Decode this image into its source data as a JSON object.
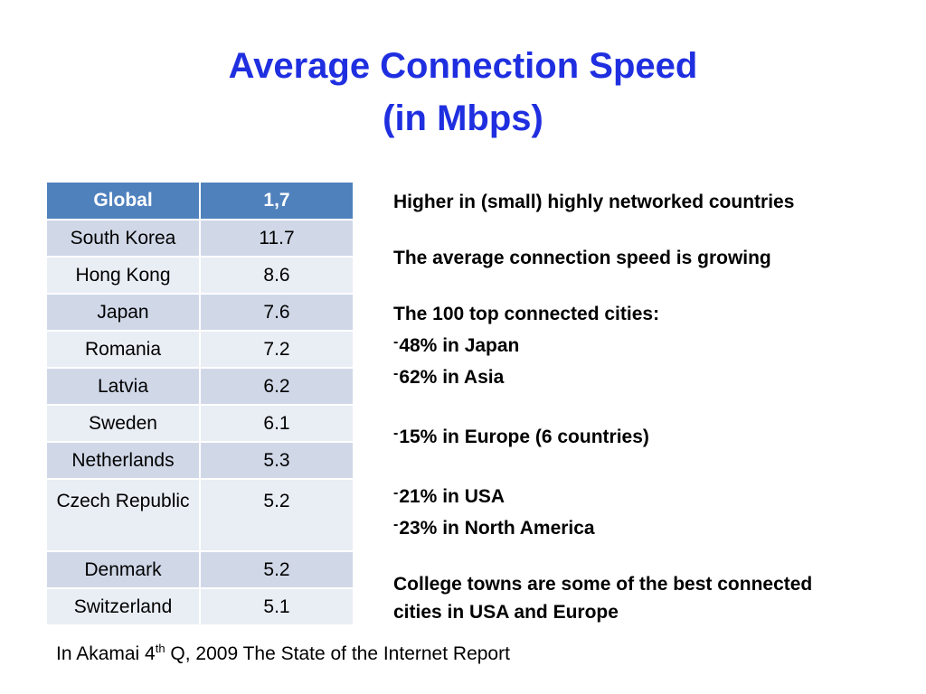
{
  "title": {
    "line1": "Average Connection Speed",
    "line2": "(in Mbps)"
  },
  "table": {
    "header": {
      "country": "Global",
      "value": "1,7"
    },
    "rows": [
      {
        "country": "South Korea",
        "value": "11.7"
      },
      {
        "country": "Hong Kong",
        "value": "8.6"
      },
      {
        "country": "Japan",
        "value": "7.6"
      },
      {
        "country": "Romania",
        "value": "7.2"
      },
      {
        "country": "Latvia",
        "value": "6.2"
      },
      {
        "country": "Sweden",
        "value": "6.1"
      },
      {
        "country": "Netherlands",
        "value": "5.3"
      },
      {
        "country": "Czech Republic",
        "value": "5.2"
      },
      {
        "country": "Denmark",
        "value": "5.2"
      },
      {
        "country": "Switzerland",
        "value": "5.1"
      }
    ]
  },
  "notes": {
    "point1": "Higher in (small) highly networked countries",
    "point2": "The average connection speed is growing",
    "point3": "The 100  top connected cities:",
    "dash": "-",
    "bullets": [
      "48% in Japan",
      "62% in Asia",
      "15% in Europe (6 countries)",
      "21% in USA",
      "23% in North America"
    ],
    "point4_line1": "College towns are some of the best connected",
    "point4_line2": "cities in USA and Europe"
  },
  "source": {
    "prefix": "In Akamai 4",
    "sup": "th",
    "suffix": " Q, 2009 The State of the Internet Report"
  }
}
